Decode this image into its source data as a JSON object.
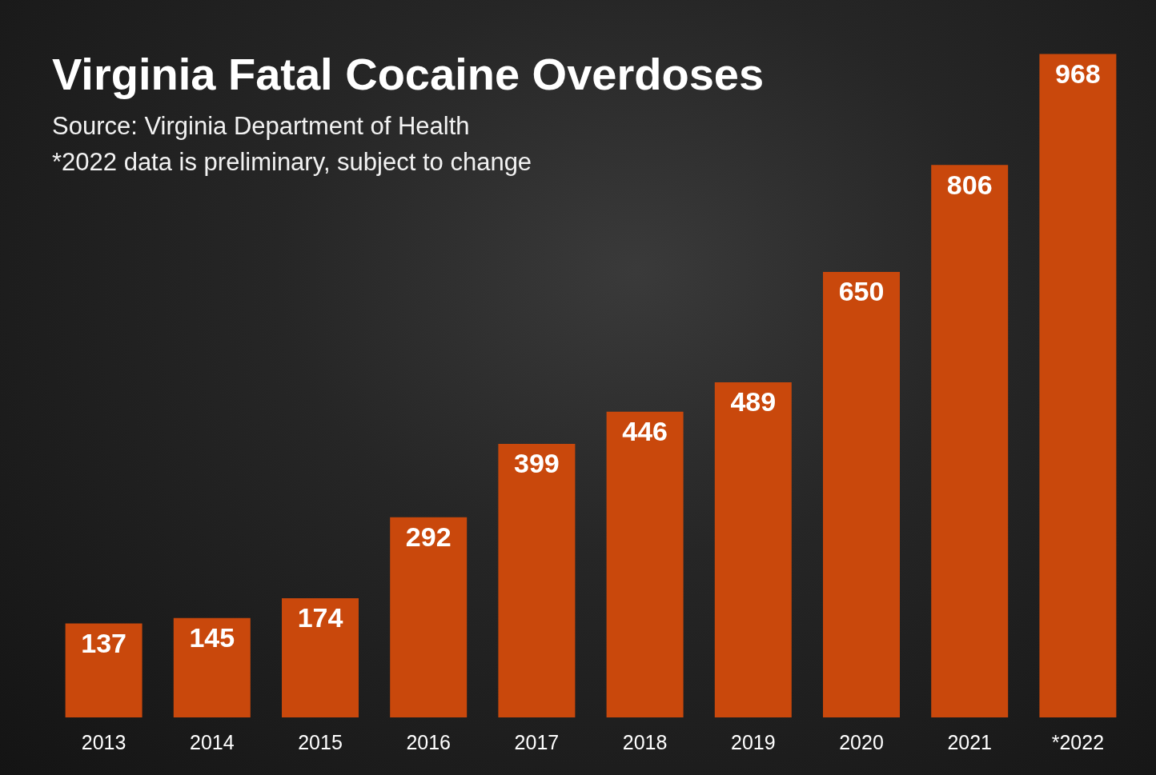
{
  "chart_data": {
    "type": "bar",
    "title": "Virginia Fatal Cocaine Overdoses",
    "subtitle": "Source: Virginia Department of Health",
    "annotations": [
      "*2022 data is preliminary, subject to change"
    ],
    "categories": [
      "2013",
      "2014",
      "2015",
      "2016",
      "2017",
      "2018",
      "2019",
      "2020",
      "2021",
      "*2022"
    ],
    "values": [
      137,
      145,
      174,
      292,
      399,
      446,
      489,
      650,
      806,
      968
    ],
    "color": "#c9480c",
    "grid": false,
    "data_labels": true,
    "tick_labels": "x"
  }
}
